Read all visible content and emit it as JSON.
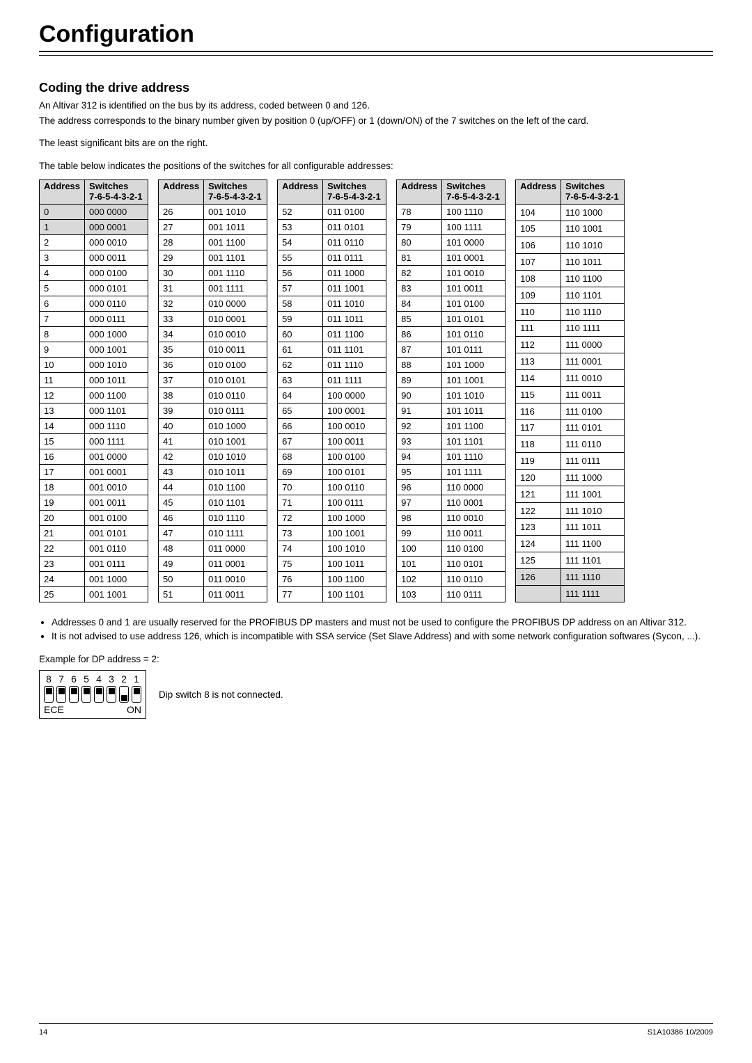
{
  "page_title": "Configuration",
  "section_title": "Coding the drive address",
  "intro": [
    "An Altivar 312 is identified on the bus by its address, coded between 0 and 126.",
    "The address corresponds to the binary number given by position 0 (up/OFF) or 1 (down/ON) of the 7 switches on the left of the card."
  ],
  "lsb_note": "The least significant bits are on the right.",
  "table_intro": "The table below indicates the positions of the switches for all configurable addresses:",
  "table_header": {
    "address": "Address",
    "switches": "Switches",
    "switches_sub": "7-6-5-4-3-2-1"
  },
  "columns": [
    {
      "start": 0,
      "end": 25,
      "gray": [
        0,
        1
      ]
    },
    {
      "start": 26,
      "end": 51,
      "gray": []
    },
    {
      "start": 52,
      "end": 77,
      "gray": []
    },
    {
      "start": 78,
      "end": 103,
      "gray": []
    },
    {
      "start": 104,
      "end": 127,
      "gray": [
        126,
        127
      ],
      "blank_last_addr": true
    }
  ],
  "notes": [
    "Addresses 0 and 1 are usually reserved for the PROFIBUS DP masters and must not be used to configure the PROFIBUS DP address on an Altivar 312.",
    "It is not advised to use address 126, which is incompatible with SSA service (Set Slave Address) and with some network configuration softwares (Sycon, ...)."
  ],
  "example_label": "Example for DP address = 2:",
  "dip": {
    "numbers": [
      "8",
      "7",
      "6",
      "5",
      "4",
      "3",
      "2",
      "1"
    ],
    "states": [
      "up",
      "up",
      "up",
      "up",
      "up",
      "up",
      "down",
      "up"
    ],
    "left_label": "ECE",
    "right_label": "ON",
    "side_note": "Dip switch 8 is not connected."
  },
  "footer": {
    "page": "14",
    "doc": "S1A10386 10/2009"
  },
  "colors": {
    "gray": "#d9d9d9",
    "text": "#000000",
    "bg": "#ffffff"
  }
}
